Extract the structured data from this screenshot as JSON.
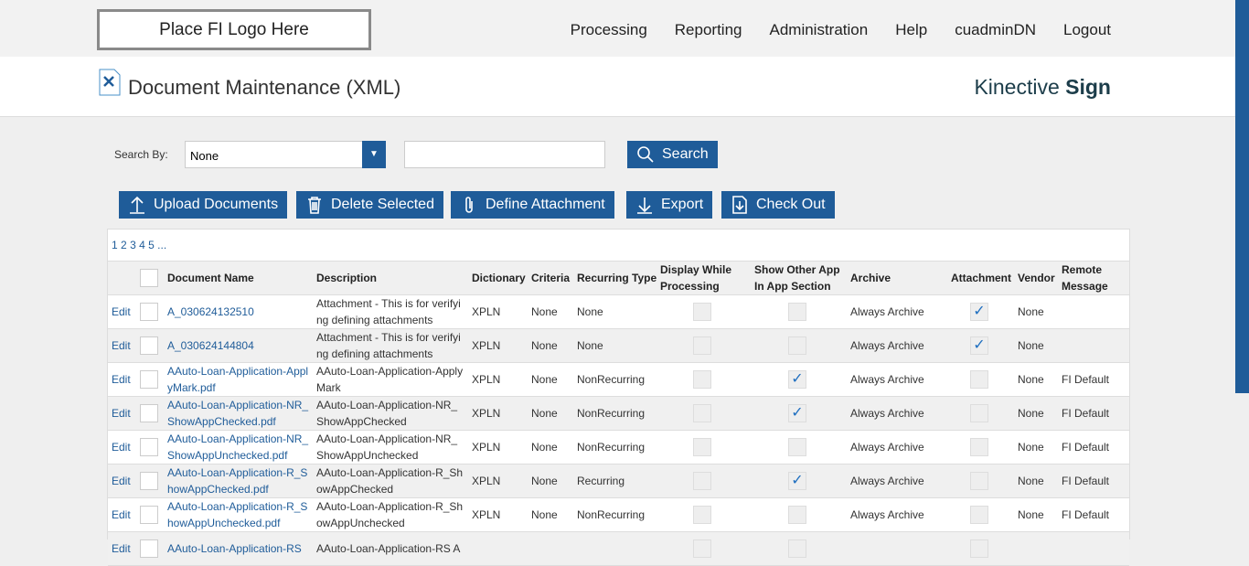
{
  "logo": "Place FI Logo Here",
  "nav": [
    "Processing",
    "Reporting",
    "Administration",
    "Help",
    "cuadminDN",
    "Logout"
  ],
  "title": "Document Maintenance (XML)",
  "brand": {
    "light": "Kinective",
    "bold": "Sign"
  },
  "search": {
    "label": "Search By:",
    "selected": "None",
    "value": "",
    "button": "Search"
  },
  "toolbar": [
    "Upload Documents",
    "Delete Selected",
    "Define Attachment",
    "Export",
    "Check Out"
  ],
  "pager": [
    "1",
    "2",
    "3",
    "4",
    "5",
    "..."
  ],
  "columns": [
    "Document Name",
    "Description",
    "Dictionary",
    "Criteria",
    "Recurring Type",
    "Display While Processing",
    "Show Other App In App Section",
    "Archive",
    "Attachment",
    "Vendor",
    "Remote Message"
  ],
  "edit_label": "Edit",
  "rows": [
    {
      "name": "A_030624132510",
      "desc": "Attachment - This is for verifying defining attachments",
      "dict": "XPLN",
      "criteria": "None",
      "recurring": "None",
      "display": false,
      "show": false,
      "archive": "Always Archive",
      "attachment": true,
      "vendor": "None",
      "remote": ""
    },
    {
      "name": "A_030624144804",
      "desc": "Attachment - This is for verifying defining attachments",
      "dict": "XPLN",
      "criteria": "None",
      "recurring": "None",
      "display": false,
      "show": false,
      "archive": "Always Archive",
      "attachment": true,
      "vendor": "None",
      "remote": ""
    },
    {
      "name": "AAuto-Loan-Application-ApplyMark.pdf",
      "desc": "AAuto-Loan-Application-ApplyMark",
      "dict": "XPLN",
      "criteria": "None",
      "recurring": "NonRecurring",
      "display": false,
      "show": true,
      "archive": "Always Archive",
      "attachment": false,
      "vendor": "None",
      "remote": "FI Default"
    },
    {
      "name": "AAuto-Loan-Application-NR_ShowAppChecked.pdf",
      "desc": "AAuto-Loan-Application-NR_ShowAppChecked",
      "dict": "XPLN",
      "criteria": "None",
      "recurring": "NonRecurring",
      "display": false,
      "show": true,
      "archive": "Always Archive",
      "attachment": false,
      "vendor": "None",
      "remote": "FI Default"
    },
    {
      "name": "AAuto-Loan-Application-NR_ShowAppUnchecked.pdf",
      "desc": "AAuto-Loan-Application-NR_ShowAppUnchecked",
      "dict": "XPLN",
      "criteria": "None",
      "recurring": "NonRecurring",
      "display": false,
      "show": false,
      "archive": "Always Archive",
      "attachment": false,
      "vendor": "None",
      "remote": "FI Default"
    },
    {
      "name": "AAuto-Loan-Application-R_ShowAppChecked.pdf",
      "desc": "AAuto-Loan-Application-R_ShowAppChecked",
      "dict": "XPLN",
      "criteria": "None",
      "recurring": "Recurring",
      "display": false,
      "show": true,
      "archive": "Always Archive",
      "attachment": false,
      "vendor": "None",
      "remote": "FI Default"
    },
    {
      "name": "AAuto-Loan-Application-R_ShowAppUnchecked.pdf",
      "desc": "AAuto-Loan-Application-R_ShowAppUnchecked",
      "dict": "XPLN",
      "criteria": "None",
      "recurring": "NonRecurring",
      "display": false,
      "show": false,
      "archive": "Always Archive",
      "attachment": false,
      "vendor": "None",
      "remote": "FI Default"
    },
    {
      "name": "AAuto-Loan-Application-RS",
      "desc": "AAuto-Loan-Application-RS A",
      "dict": "",
      "criteria": "",
      "recurring": "",
      "display": false,
      "show": false,
      "archive": "",
      "attachment": false,
      "vendor": "",
      "remote": ""
    }
  ]
}
